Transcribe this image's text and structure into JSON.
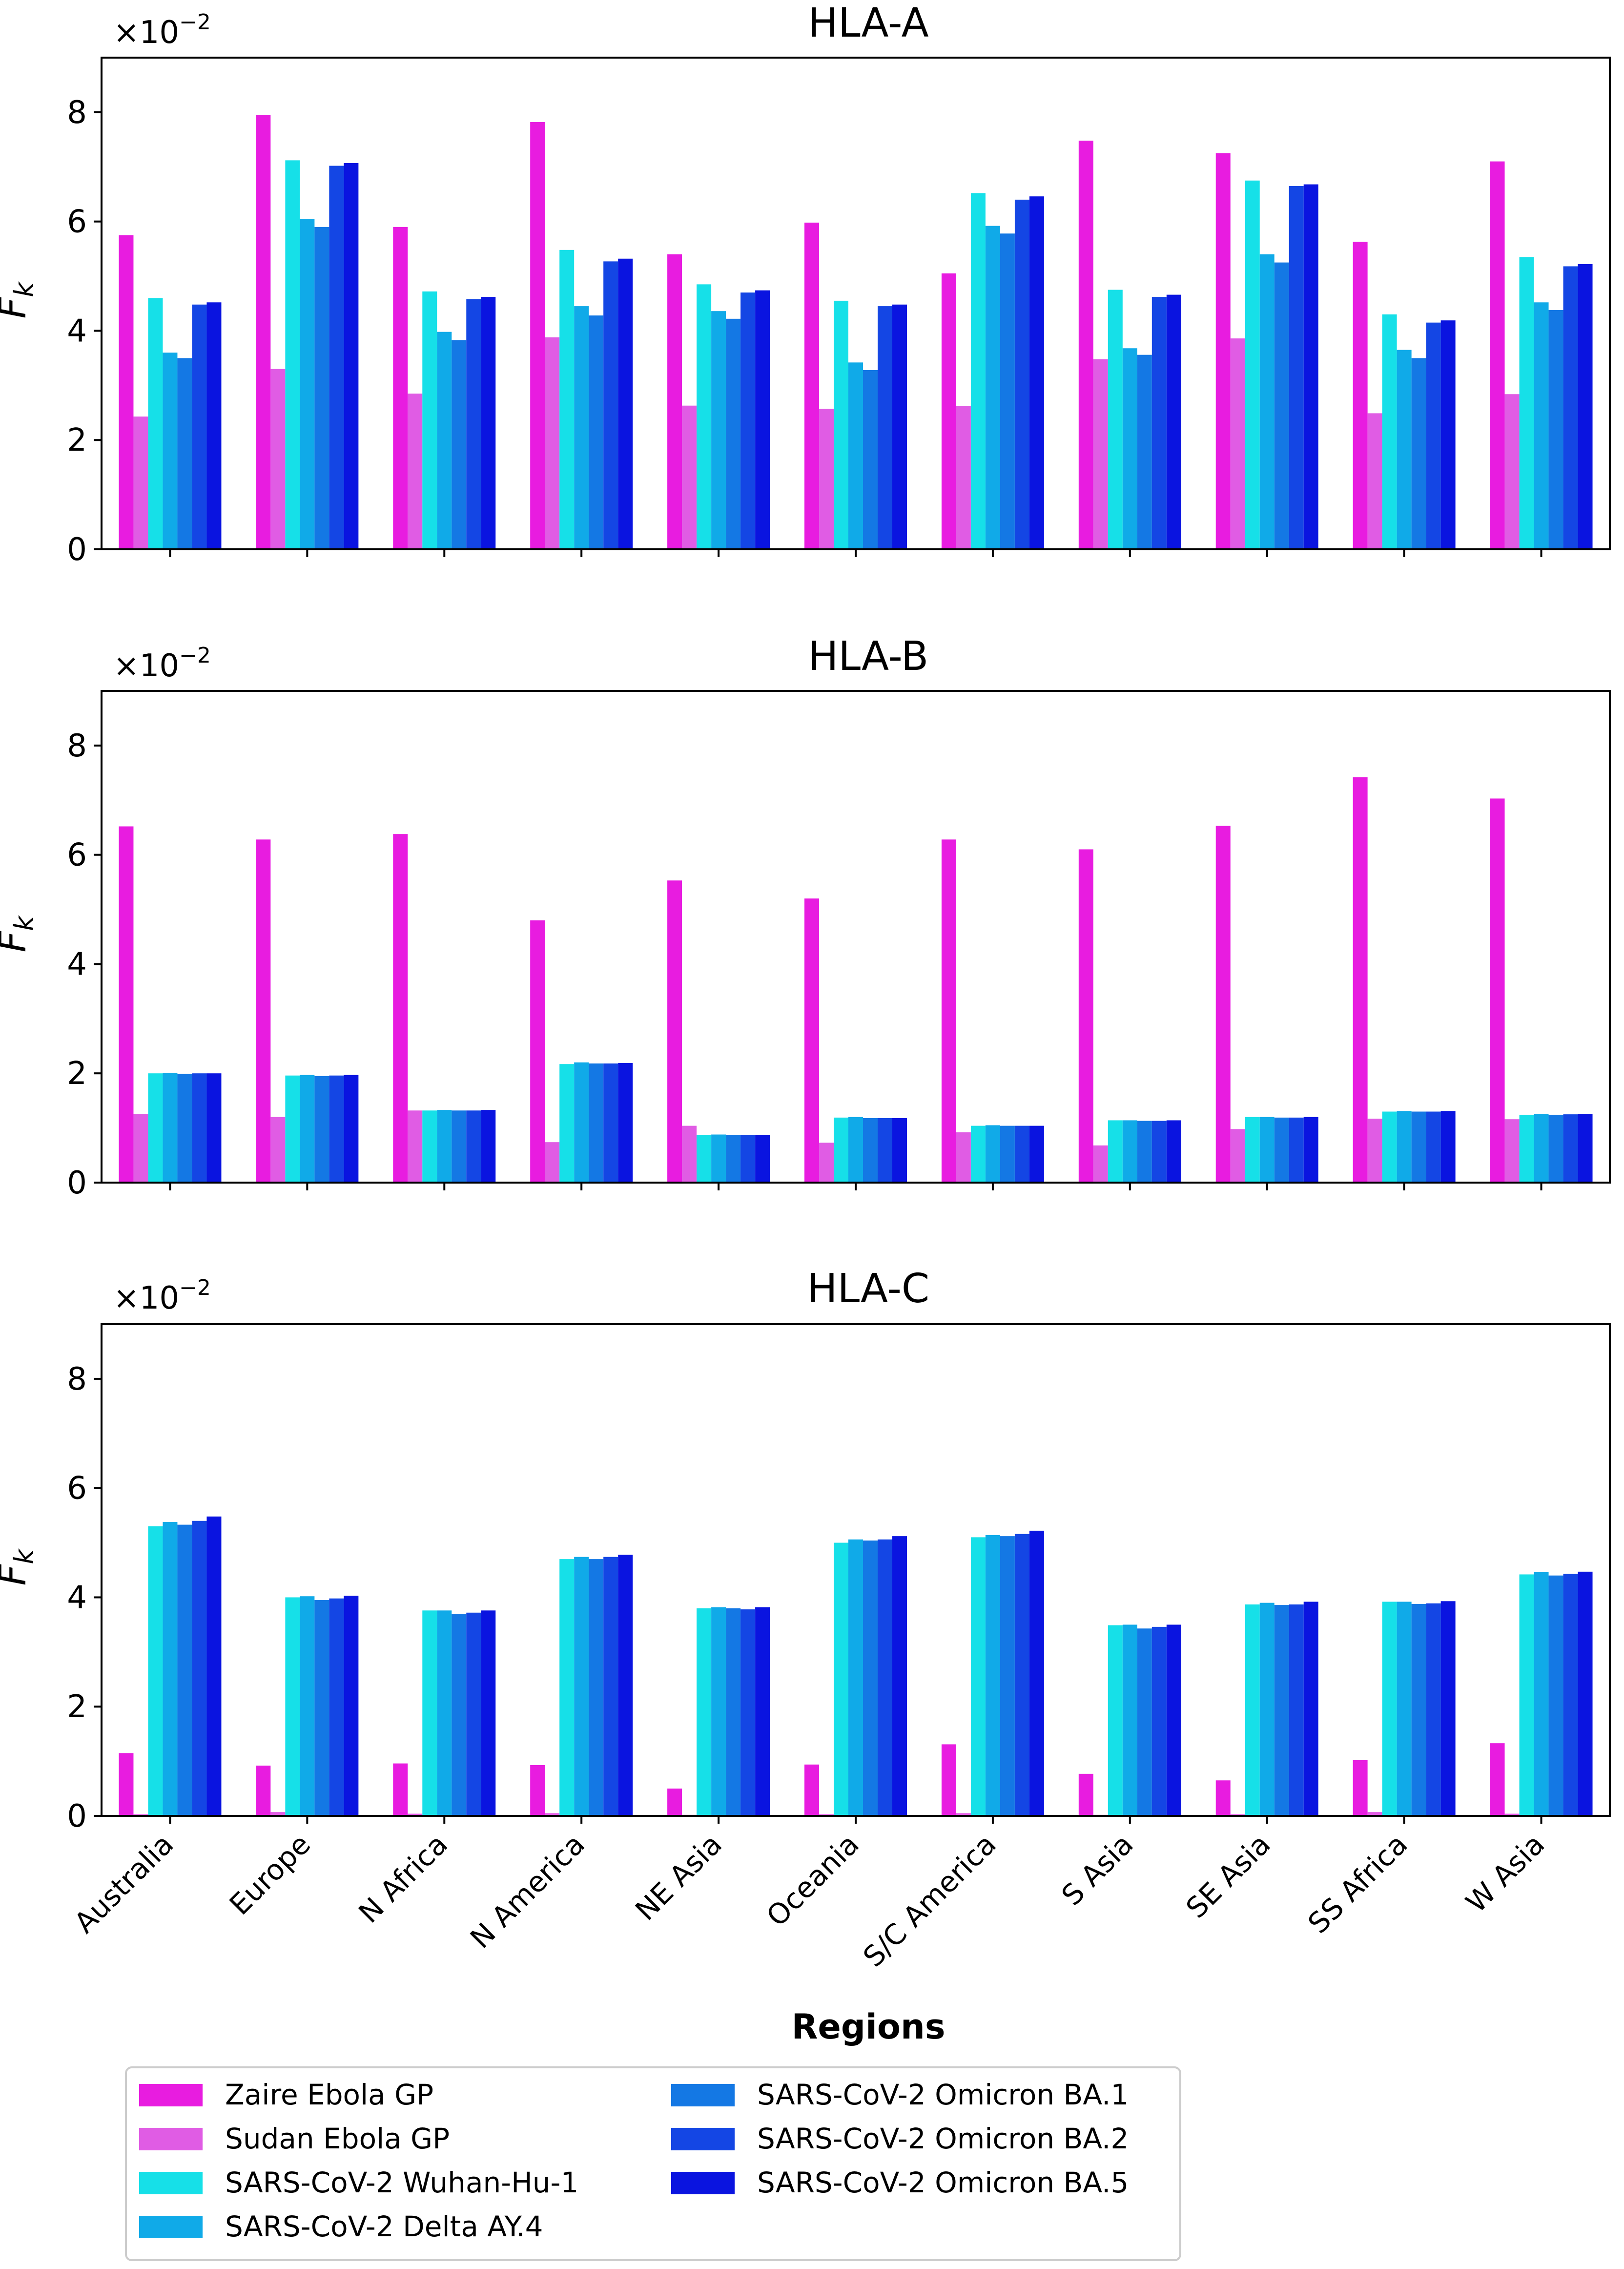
{
  "chart_data": {
    "type": "bar",
    "xlabel": "Regions",
    "ylabel_main": "F",
    "ylabel_sub": "k",
    "exponent_base": "×10",
    "exponent_power": "−2",
    "ylim": [
      0,
      9
    ],
    "yticks": [
      "0",
      "2",
      "4",
      "6",
      "8"
    ],
    "categories": [
      "Australia",
      "Europe",
      "N Africa",
      "N America",
      "NE Asia",
      "Oceania",
      "S/C America",
      "S Asia",
      "SE Asia",
      "SS Africa",
      "W Asia"
    ],
    "legend_position": "bottom",
    "series_names": [
      "Zaire Ebola GP",
      "Sudan Ebola GP",
      "SARS-CoV-2 Wuhan-Hu-1",
      "SARS-CoV-2 Delta AY.4",
      "SARS-CoV-2 Omicron BA.1",
      "SARS-CoV-2 Omicron BA.2",
      "SARS-CoV-2 Omicron BA.5"
    ],
    "series_colors": [
      "#e81ce0",
      "#e05ce4",
      "#16e0e8",
      "#10aae8",
      "#1478e4",
      "#1446e4",
      "#0a14e0"
    ],
    "panels": [
      {
        "title": "HLA-A",
        "series": [
          {
            "name": "Zaire Ebola GP",
            "values": [
              5.75,
              7.95,
              5.9,
              7.82,
              5.4,
              5.98,
              5.05,
              7.48,
              7.25,
              5.63,
              7.1
            ]
          },
          {
            "name": "Sudan Ebola GP",
            "values": [
              2.43,
              3.3,
              2.85,
              3.88,
              2.63,
              2.57,
              2.62,
              3.48,
              3.86,
              2.49,
              2.84
            ]
          },
          {
            "name": "SARS-CoV-2 Wuhan-Hu-1",
            "values": [
              4.6,
              7.12,
              4.72,
              5.48,
              4.85,
              4.55,
              6.52,
              4.75,
              6.75,
              4.3,
              5.35
            ]
          },
          {
            "name": "SARS-CoV-2 Delta AY.4",
            "values": [
              3.6,
              6.05,
              3.98,
              4.45,
              4.36,
              3.42,
              5.92,
              3.68,
              5.4,
              3.65,
              4.52
            ]
          },
          {
            "name": "SARS-CoV-2 Omicron BA.1",
            "values": [
              3.5,
              5.9,
              3.83,
              4.28,
              4.22,
              3.28,
              5.78,
              3.56,
              5.25,
              3.5,
              4.38
            ]
          },
          {
            "name": "SARS-CoV-2 Omicron BA.2",
            "values": [
              4.48,
              7.02,
              4.58,
              5.27,
              4.7,
              4.45,
              6.4,
              4.62,
              6.65,
              4.15,
              5.18
            ]
          },
          {
            "name": "SARS-CoV-2 Omicron BA.5",
            "values": [
              4.52,
              7.07,
              4.62,
              5.32,
              4.74,
              4.48,
              6.46,
              4.66,
              6.68,
              4.19,
              5.22
            ]
          }
        ]
      },
      {
        "title": "HLA-B",
        "series": [
          {
            "name": "Zaire Ebola GP",
            "values": [
              6.52,
              6.28,
              6.38,
              4.8,
              5.53,
              5.2,
              6.28,
              6.1,
              6.53,
              7.42,
              7.03
            ]
          },
          {
            "name": "Sudan Ebola GP",
            "values": [
              1.26,
              1.2,
              1.32,
              0.74,
              1.04,
              0.73,
              0.92,
              0.68,
              0.98,
              1.17,
              1.16
            ]
          },
          {
            "name": "SARS-CoV-2 Wuhan-Hu-1",
            "values": [
              2.0,
              1.96,
              1.32,
              2.17,
              0.87,
              1.19,
              1.04,
              1.14,
              1.2,
              1.3,
              1.24
            ]
          },
          {
            "name": "SARS-CoV-2 Delta AY.4",
            "values": [
              2.01,
              1.97,
              1.33,
              2.2,
              0.88,
              1.2,
              1.05,
              1.14,
              1.2,
              1.31,
              1.26
            ]
          },
          {
            "name": "SARS-CoV-2 Omicron BA.1",
            "values": [
              1.99,
              1.95,
              1.32,
              2.18,
              0.87,
              1.18,
              1.04,
              1.13,
              1.19,
              1.3,
              1.24
            ]
          },
          {
            "name": "SARS-CoV-2 Omicron BA.2",
            "values": [
              2.0,
              1.96,
              1.32,
              2.18,
              0.87,
              1.18,
              1.04,
              1.13,
              1.19,
              1.3,
              1.25
            ]
          },
          {
            "name": "SARS-CoV-2 Omicron BA.5",
            "values": [
              2.0,
              1.97,
              1.33,
              2.19,
              0.87,
              1.18,
              1.04,
              1.14,
              1.2,
              1.31,
              1.26
            ]
          }
        ]
      },
      {
        "title": "HLA-C",
        "series": [
          {
            "name": "Zaire Ebola GP",
            "values": [
              1.15,
              0.92,
              0.96,
              0.93,
              0.5,
              0.94,
              1.31,
              0.77,
              0.65,
              1.02,
              1.33
            ]
          },
          {
            "name": "Sudan Ebola GP",
            "values": [
              0.03,
              0.07,
              0.04,
              0.05,
              0.02,
              0.03,
              0.05,
              0.02,
              0.03,
              0.07,
              0.04
            ]
          },
          {
            "name": "SARS-CoV-2 Wuhan-Hu-1",
            "values": [
              5.3,
              4.0,
              3.76,
              4.7,
              3.8,
              5.0,
              5.1,
              3.49,
              3.87,
              3.92,
              4.42
            ]
          },
          {
            "name": "SARS-CoV-2 Delta AY.4",
            "values": [
              5.38,
              4.02,
              3.76,
              4.74,
              3.82,
              5.06,
              5.14,
              3.5,
              3.9,
              3.92,
              4.46
            ]
          },
          {
            "name": "SARS-CoV-2 Omicron BA.1",
            "values": [
              5.33,
              3.95,
              3.7,
              4.7,
              3.8,
              5.04,
              5.12,
              3.43,
              3.86,
              3.88,
              4.4
            ]
          },
          {
            "name": "SARS-CoV-2 Omicron BA.2",
            "values": [
              5.4,
              3.98,
              3.72,
              4.74,
              3.78,
              5.06,
              5.16,
              3.46,
              3.87,
              3.89,
              4.43
            ]
          },
          {
            "name": "SARS-CoV-2 Omicron BA.5",
            "values": [
              5.48,
              4.03,
              3.76,
              4.78,
              3.82,
              5.12,
              5.22,
              3.5,
              3.92,
              3.93,
              4.47
            ]
          }
        ]
      }
    ]
  }
}
